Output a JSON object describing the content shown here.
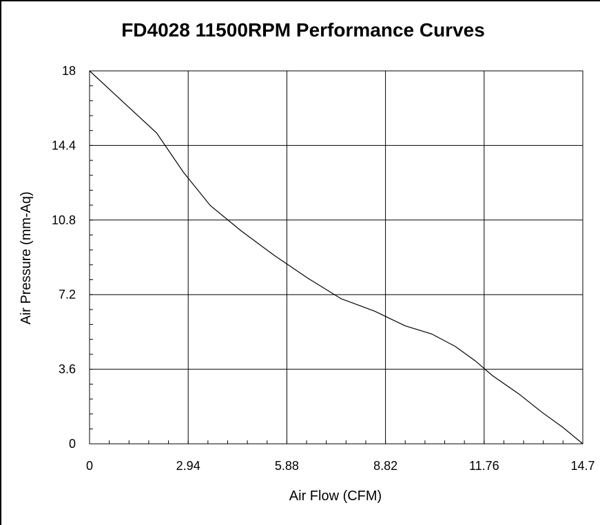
{
  "chart_data": {
    "type": "line",
    "title": "FD4028 11500RPM Performance Curves",
    "xlabel": "Air Flow (CFM)",
    "ylabel": "Air Pressure (mm-Aq)",
    "xlim": [
      0,
      14.7
    ],
    "ylim": [
      0,
      18
    ],
    "xticks": [
      "0",
      "2.94",
      "5.88",
      "8.82",
      "11.76",
      "14.7"
    ],
    "yticks": [
      "0",
      "3.6",
      "7.2",
      "10.8",
      "14.4",
      "18"
    ],
    "grid": true,
    "series": [
      {
        "color": "#000000",
        "x": [
          0,
          1.0,
          2.0,
          2.8,
          3.6,
          4.5,
          5.5,
          6.5,
          7.5,
          8.5,
          9.4,
          10.2,
          10.9,
          11.5,
          12.0,
          12.8,
          13.5,
          14.1,
          14.7
        ],
        "y": [
          18.0,
          16.5,
          15.0,
          13.1,
          11.5,
          10.3,
          9.1,
          8.0,
          7.0,
          6.4,
          5.7,
          5.3,
          4.7,
          4.0,
          3.3,
          2.4,
          1.5,
          0.8,
          0.0
        ]
      }
    ],
    "colors": {
      "line": "#000000",
      "grid": "#000000",
      "background": "#ffffff"
    }
  }
}
